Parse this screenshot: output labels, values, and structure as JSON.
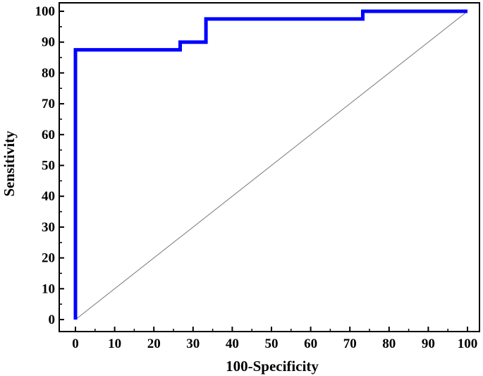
{
  "chart_data": {
    "type": "line",
    "xlabel": "100-Specificity",
    "ylabel": "Sensitivity",
    "xlim": [
      0,
      100
    ],
    "ylim": [
      0,
      100
    ],
    "x_ticks": [
      0,
      10,
      20,
      30,
      40,
      50,
      60,
      70,
      80,
      90,
      100
    ],
    "y_ticks": [
      0,
      10,
      20,
      30,
      40,
      50,
      60,
      70,
      80,
      90,
      100
    ],
    "grid": false,
    "series": [
      {
        "kind": "roc-curve",
        "color": "#0000ff",
        "points": [
          [
            0,
            0
          ],
          [
            0,
            87.5
          ],
          [
            26.7,
            87.5
          ],
          [
            26.7,
            90
          ],
          [
            33.3,
            90
          ],
          [
            33.3,
            97.5
          ],
          [
            73.3,
            97.5
          ],
          [
            73.3,
            100
          ],
          [
            100,
            100
          ]
        ]
      },
      {
        "kind": "reference-diagonal",
        "color": "#777777",
        "points": [
          [
            0,
            0
          ],
          [
            100,
            100
          ]
        ]
      }
    ]
  }
}
